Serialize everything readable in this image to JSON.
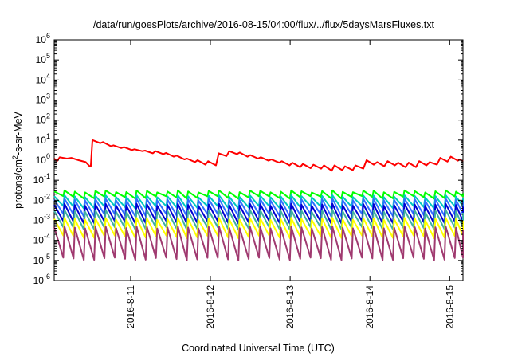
{
  "chart_data": {
    "type": "line",
    "title": "/data/run/goesPlots/archive/2016-08-15/04:00/flux/../flux/5daysMarsFluxes.txt",
    "xlabel": "Coordinated Universal Time (UTC)",
    "ylabel": {
      "base": "protons/cm",
      "sup": "2",
      "rest": "-s-sr-MeV"
    },
    "yscale": "log",
    "grid": false,
    "legend": "none",
    "x_is_date": true,
    "xlim": [
      "2016-08-10T01:00",
      "2016-08-15T04:00"
    ],
    "ylim": [
      1e-06,
      1000000.0
    ],
    "x_ticks": [
      {
        "label": "2016-8-11",
        "at": "2016-08-11T00:00"
      },
      {
        "label": "2016-8-12",
        "at": "2016-08-12T00:00"
      },
      {
        "label": "2016-8-13",
        "at": "2016-08-13T00:00"
      },
      {
        "label": "2016-8-14",
        "at": "2016-08-14T00:00"
      },
      {
        "label": "2016-8-15",
        "at": "2016-08-15T00:00"
      }
    ],
    "y_ticks": [
      {
        "base": "10",
        "exp": "-6",
        "value": 1e-06
      },
      {
        "base": "10",
        "exp": "-5",
        "value": 1e-05
      },
      {
        "base": "10",
        "exp": "-4",
        "value": 0.0001
      },
      {
        "base": "10",
        "exp": "-3",
        "value": 0.001
      },
      {
        "base": "10",
        "exp": "-2",
        "value": 0.01
      },
      {
        "base": "10",
        "exp": "-1",
        "value": 0.1
      },
      {
        "base": "10",
        "exp": "0",
        "value": 1
      },
      {
        "base": "10",
        "exp": "1",
        "value": 10
      },
      {
        "base": "10",
        "exp": "2",
        "value": 100
      },
      {
        "base": "10",
        "exp": "3",
        "value": 1000
      },
      {
        "base": "10",
        "exp": "4",
        "value": 10000
      },
      {
        "base": "10",
        "exp": "5",
        "value": 100000
      },
      {
        "base": "10",
        "exp": "6",
        "value": 1000000
      }
    ],
    "series": [
      {
        "color": "#ff0000",
        "points": [
          [
            "2016-08-10T01:00",
            1.2
          ],
          [
            "2016-08-10T01:50",
            0.9
          ],
          [
            "2016-08-10T02:40",
            1.4
          ],
          [
            "2016-08-10T04:50",
            1.2
          ],
          [
            "2016-08-10T06:10",
            1.3
          ],
          [
            "2016-08-10T08:20",
            1.0
          ],
          [
            "2016-08-10T10:30",
            0.8
          ],
          [
            "2016-08-10T11:40",
            0.5
          ],
          [
            "2016-08-10T12:00",
            0.48
          ],
          [
            "2016-08-10T12:30",
            10
          ],
          [
            "2016-08-10T14:50",
            7
          ],
          [
            "2016-08-10T15:40",
            8
          ],
          [
            "2016-08-10T18:00",
            5
          ],
          [
            "2016-08-10T18:50",
            5.5
          ],
          [
            "2016-08-10T21:10",
            4
          ],
          [
            "2016-08-10T22:00",
            4.5
          ],
          [
            "2016-08-11T00:20",
            3.2
          ],
          [
            "2016-08-11T01:10",
            3.5
          ],
          [
            "2016-08-11T03:30",
            2.8
          ],
          [
            "2016-08-11T04:20",
            3.0
          ],
          [
            "2016-08-11T06:40",
            2.2
          ],
          [
            "2016-08-11T07:30",
            2.8
          ],
          [
            "2016-08-11T09:50",
            2.0
          ],
          [
            "2016-08-11T10:40",
            2.3
          ],
          [
            "2016-08-11T13:00",
            1.5
          ],
          [
            "2016-08-11T13:50",
            1.7
          ],
          [
            "2016-08-11T16:10",
            1.1
          ],
          [
            "2016-08-11T17:00",
            1.2
          ],
          [
            "2016-08-11T19:20",
            0.8
          ],
          [
            "2016-08-11T20:10",
            1.0
          ],
          [
            "2016-08-11T22:30",
            0.6
          ],
          [
            "2016-08-11T23:20",
            0.9
          ],
          [
            "2016-08-12T01:40",
            0.55
          ],
          [
            "2016-08-12T02:30",
            2.2
          ],
          [
            "2016-08-12T04:50",
            1.6
          ],
          [
            "2016-08-12T05:40",
            2.8
          ],
          [
            "2016-08-12T08:00",
            2.0
          ],
          [
            "2016-08-12T08:50",
            2.4
          ],
          [
            "2016-08-12T11:10",
            1.5
          ],
          [
            "2016-08-12T12:00",
            1.8
          ],
          [
            "2016-08-12T14:20",
            1.2
          ],
          [
            "2016-08-12T15:10",
            1.4
          ],
          [
            "2016-08-12T17:30",
            0.95
          ],
          [
            "2016-08-12T18:20",
            1.1
          ],
          [
            "2016-08-12T20:40",
            0.75
          ],
          [
            "2016-08-12T21:30",
            0.9
          ],
          [
            "2016-08-12T23:50",
            0.55
          ],
          [
            "2016-08-13T00:40",
            0.75
          ],
          [
            "2016-08-13T03:00",
            0.45
          ],
          [
            "2016-08-13T03:50",
            0.65
          ],
          [
            "2016-08-13T06:10",
            0.4
          ],
          [
            "2016-08-13T07:00",
            0.6
          ],
          [
            "2016-08-13T09:20",
            0.38
          ],
          [
            "2016-08-13T10:10",
            0.55
          ],
          [
            "2016-08-13T12:30",
            0.3
          ],
          [
            "2016-08-13T13:20",
            0.55
          ],
          [
            "2016-08-13T15:40",
            0.32
          ],
          [
            "2016-08-13T16:30",
            0.5
          ],
          [
            "2016-08-13T18:50",
            0.32
          ],
          [
            "2016-08-13T19:40",
            0.55
          ],
          [
            "2016-08-13T22:00",
            0.38
          ],
          [
            "2016-08-13T23:00",
            1.0
          ],
          [
            "2016-08-14T01:10",
            0.6
          ],
          [
            "2016-08-14T02:10",
            0.8
          ],
          [
            "2016-08-14T04:20",
            0.5
          ],
          [
            "2016-08-14T05:20",
            0.9
          ],
          [
            "2016-08-14T07:30",
            0.55
          ],
          [
            "2016-08-14T08:30",
            0.75
          ],
          [
            "2016-08-14T10:40",
            0.45
          ],
          [
            "2016-08-14T11:40",
            0.75
          ],
          [
            "2016-08-14T13:50",
            0.45
          ],
          [
            "2016-08-14T14:50",
            0.9
          ],
          [
            "2016-08-14T17:00",
            0.55
          ],
          [
            "2016-08-14T18:00",
            0.8
          ],
          [
            "2016-08-14T20:10",
            0.6
          ],
          [
            "2016-08-14T21:10",
            1.3
          ],
          [
            "2016-08-14T23:20",
            0.85
          ],
          [
            "2016-08-15T00:20",
            1.5
          ],
          [
            "2016-08-15T02:30",
            0.95
          ],
          [
            "2016-08-15T03:00",
            1.1
          ],
          [
            "2016-08-15T04:00",
            0.9
          ]
        ]
      },
      {
        "color": "#00ff00",
        "sawtooth": {
          "start": "2016-08-10T01:00",
          "end": "2016-08-15T04:00",
          "period_hours": 3.1,
          "peak": 0.028,
          "trough": 0.014
        }
      },
      {
        "color": "#00c8c0",
        "sawtooth": {
          "start": "2016-08-10T01:00",
          "end": "2016-08-15T04:00",
          "period_hours": 3.1,
          "peak": 0.016,
          "trough": 0.0045
        }
      },
      {
        "color": "#3070ff",
        "sawtooth": {
          "start": "2016-08-10T01:00",
          "end": "2016-08-15T04:00",
          "period_hours": 3.1,
          "peak": 0.011,
          "trough": 0.0018
        }
      },
      {
        "color": "#0000d0",
        "sawtooth": {
          "start": "2016-08-10T01:00",
          "end": "2016-08-15T04:00",
          "period_hours": 3.1,
          "peak": 0.006,
          "trough": 0.0008
        }
      },
      {
        "color": "#40b0a0",
        "sawtooth": {
          "start": "2016-08-10T01:00",
          "end": "2016-08-15T04:00",
          "period_hours": 3.1,
          "peak": 0.003,
          "trough": 0.0004
        }
      },
      {
        "color": "#ffff00",
        "sawtooth": {
          "start": "2016-08-10T01:00",
          "end": "2016-08-15T04:00",
          "period_hours": 3.1,
          "peak": 0.0012,
          "trough": 0.00015
        }
      },
      {
        "color": "#a03a70",
        "sawtooth": {
          "start": "2016-08-10T01:00",
          "end": "2016-08-15T04:00",
          "period_hours": 3.1,
          "peak": 0.00045,
          "trough": 1.2e-05
        }
      }
    ]
  }
}
